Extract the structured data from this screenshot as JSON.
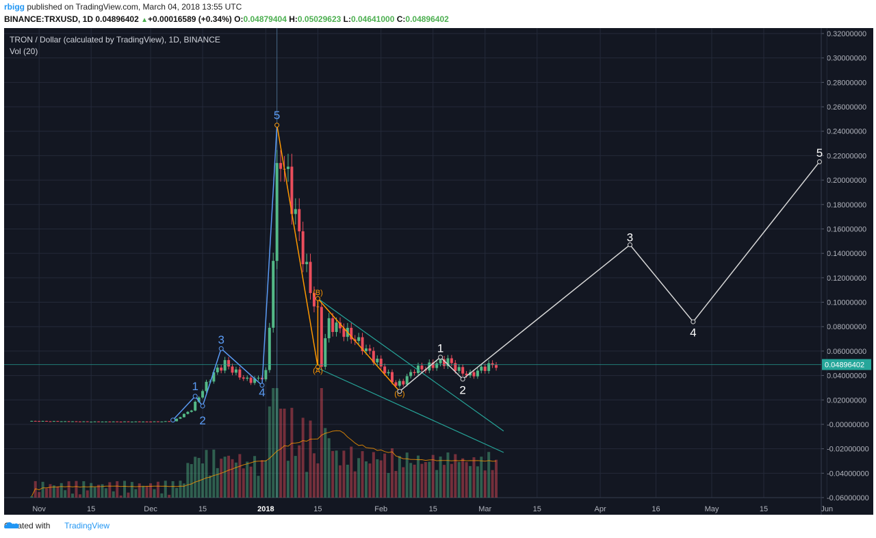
{
  "header": {
    "publisher": "rbigg",
    "published_text": " published on TradingView.com, March 04, 2018 13:55 UTC",
    "symbol": "BINANCE:TRXUSD, 1D",
    "last": "0.04896402",
    "arrow": "▲",
    "change": "+0.00016589 (+0.34%)",
    "o_label": "O:",
    "o_val": "0.04879404",
    "h_label": "H:",
    "h_val": "0.05029623",
    "l_label": "L:",
    "l_val": "0.04641000",
    "c_label": "C:",
    "c_val": "0.04896402"
  },
  "footer": {
    "created_with": "Created with",
    "brand": "TradingView"
  },
  "chart_data": {
    "type": "candlestick",
    "title": "TRON / Dollar (calculated by TradingView), 1D, BINANCE",
    "indicator": "Vol (20)",
    "ylim": [
      -0.06,
      0.32
    ],
    "y_ticks": [
      "0.32000000",
      "0.30000000",
      "0.28000000",
      "0.26000000",
      "0.24000000",
      "0.22000000",
      "0.20000000",
      "0.18000000",
      "0.16000000",
      "0.14000000",
      "0.12000000",
      "0.10000000",
      "0.08000000",
      "0.06000000",
      "0.04000000",
      "0.02000000",
      "-0.00000000",
      "-0.02000000",
      "-0.04000000",
      "-0.06000000"
    ],
    "x_labels": [
      {
        "label": "Nov",
        "date": "2017-11-01"
      },
      {
        "label": "15",
        "date": "2017-11-15"
      },
      {
        "label": "Dec",
        "date": "2017-12-01"
      },
      {
        "label": "15",
        "date": "2017-12-15"
      },
      {
        "label": "2018",
        "date": "2018-01-01",
        "bold": true
      },
      {
        "label": "15",
        "date": "2018-01-15"
      },
      {
        "label": "Feb",
        "date": "2018-02-01"
      },
      {
        "label": "15",
        "date": "2018-02-15"
      },
      {
        "label": "Mar",
        "date": "2018-03-01"
      },
      {
        "label": "15",
        "date": "2018-03-15"
      },
      {
        "label": "Apr",
        "date": "2018-04-01"
      },
      {
        "label": "16",
        "date": "2018-04-16"
      },
      {
        "label": "May",
        "date": "2018-05-01"
      },
      {
        "label": "15",
        "date": "2018-05-15"
      },
      {
        "label": "Jun",
        "date": "2018-06-01"
      }
    ],
    "last_price": 0.04896402,
    "last_price_label": "0.04896402",
    "price_path": [
      [
        "2017-10-30",
        0.0027
      ],
      [
        "2017-11-15",
        0.0022
      ],
      [
        "2017-12-01",
        0.0022
      ],
      [
        "2017-12-07",
        0.0025
      ],
      [
        "2017-12-12",
        0.012
      ],
      [
        "2017-12-15",
        0.028
      ],
      [
        "2017-12-18",
        0.042
      ],
      [
        "2017-12-21",
        0.05
      ],
      [
        "2017-12-24",
        0.042
      ],
      [
        "2017-12-27",
        0.036
      ],
      [
        "2017-12-30",
        0.037
      ],
      [
        "2018-01-01",
        0.042
      ],
      [
        "2018-01-02",
        0.08
      ],
      [
        "2018-01-03",
        0.14
      ],
      [
        "2018-01-04",
        0.2
      ],
      [
        "2018-01-05",
        0.22
      ],
      [
        "2018-01-07",
        0.2
      ],
      [
        "2018-01-09",
        0.17
      ],
      [
        "2018-01-11",
        0.14
      ],
      [
        "2018-01-13",
        0.11
      ],
      [
        "2018-01-15",
        0.09
      ],
      [
        "2018-01-16",
        0.05
      ],
      [
        "2018-01-17",
        0.07
      ],
      [
        "2018-01-18",
        0.083
      ],
      [
        "2018-01-21",
        0.078
      ],
      [
        "2018-01-25",
        0.07
      ],
      [
        "2018-01-29",
        0.058
      ],
      [
        "2018-02-02",
        0.044
      ],
      [
        "2018-02-05",
        0.032
      ],
      [
        "2018-02-07",
        0.035
      ],
      [
        "2018-02-10",
        0.045
      ],
      [
        "2018-02-13",
        0.046
      ],
      [
        "2018-02-16",
        0.05
      ],
      [
        "2018-02-19",
        0.052
      ],
      [
        "2018-02-22",
        0.044
      ],
      [
        "2018-02-25",
        0.04
      ],
      [
        "2018-03-01",
        0.047
      ],
      [
        "2018-03-04",
        0.049
      ]
    ],
    "volume": {
      "ylim": [
        0,
        0.0004
      ]
    },
    "wave_blue": {
      "points": [
        [
          "2017-12-07",
          0.0035
        ],
        [
          "2017-12-13",
          0.023
        ],
        [
          "2017-12-15",
          0.015
        ],
        [
          "2017-12-20",
          0.062
        ],
        [
          "2017-12-31",
          0.032
        ],
        [
          "2018-01-04",
          0.245
        ]
      ],
      "labels": [
        {
          "text": "1",
          "date": "2017-12-13",
          "y": 0.028
        },
        {
          "text": "2",
          "date": "2017-12-15",
          "y": 0.0
        },
        {
          "text": "3",
          "date": "2017-12-20",
          "y": 0.066
        },
        {
          "text": "4",
          "date": "2017-12-31",
          "y": 0.023
        },
        {
          "text": "5",
          "date": "2018-01-04",
          "y": 0.25
        }
      ]
    },
    "wave_orange": {
      "points": [
        [
          "2018-01-04",
          0.245
        ],
        [
          "2018-01-15",
          0.047
        ],
        [
          "2018-01-15",
          0.103
        ],
        [
          "2018-02-06",
          0.027
        ]
      ],
      "labels": [
        {
          "text": "(A)",
          "date": "2018-01-15",
          "y": 0.042
        },
        {
          "text": "(B)",
          "date": "2018-01-15",
          "y": 0.106
        },
        {
          "text": "(C)",
          "date": "2018-02-06",
          "y": 0.023
        }
      ]
    },
    "channel": [
      [
        [
          "2018-01-15",
          0.103
        ],
        [
          "2018-03-06",
          -0.0055
        ]
      ],
      [
        [
          "2018-01-15",
          0.046
        ],
        [
          "2018-03-06",
          -0.023
        ]
      ]
    ],
    "wave_white": {
      "points": [
        [
          "2018-02-06",
          0.027
        ],
        [
          "2018-02-17",
          0.055
        ],
        [
          "2018-02-23",
          0.037
        ],
        [
          "2018-04-09",
          0.147
        ],
        [
          "2018-04-26",
          0.084
        ],
        [
          "2018-05-30",
          0.215
        ]
      ],
      "labels": [
        {
          "text": "1",
          "date": "2018-02-17",
          "y": 0.059
        },
        {
          "text": "2",
          "date": "2018-02-23",
          "y": 0.025
        },
        {
          "text": "3",
          "date": "2018-04-09",
          "y": 0.15
        },
        {
          "text": "4",
          "date": "2018-04-26",
          "y": 0.072
        },
        {
          "text": "5",
          "date": "2018-05-30",
          "y": 0.219
        }
      ]
    },
    "colors": {
      "background": "#131722",
      "grid": "#242a3a",
      "up": "#53b987",
      "down": "#eb4d5c",
      "blue_wave": "#5b9cf6",
      "orange_wave": "#ff9800",
      "channel": "#26a69a",
      "white_wave": "#d8d8d8",
      "price_line": "#26a69a",
      "volume_ma": "#ff9800"
    }
  }
}
